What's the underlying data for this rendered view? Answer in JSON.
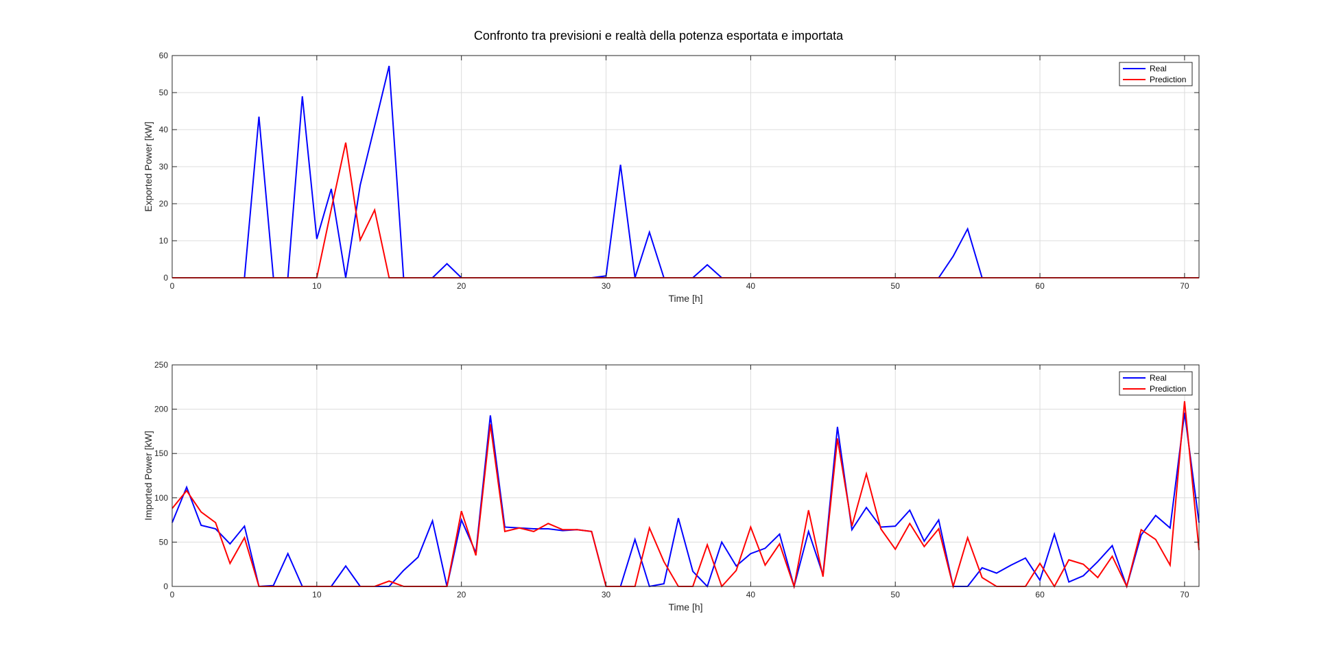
{
  "figure": {
    "title": "Confronto tra previsioni e realtà della potenza esportata e importata"
  },
  "colors": {
    "real": "#0000ff",
    "prediction": "#ff0000",
    "grid": "#dcdcdc",
    "axis": "#262626"
  },
  "chart_data": [
    {
      "type": "line",
      "title": "",
      "xlabel": "Time [h]",
      "ylabel": "Exported Power [kW]",
      "xlim": [
        0,
        71
      ],
      "ylim": [
        0,
        60
      ],
      "xticks": [
        0,
        10,
        20,
        30,
        40,
        50,
        60,
        70
      ],
      "yticks": [
        0,
        10,
        20,
        30,
        40,
        50,
        60
      ],
      "grid": true,
      "legend_position": "top-right",
      "x": [
        0,
        1,
        2,
        3,
        4,
        5,
        6,
        7,
        8,
        9,
        10,
        11,
        12,
        13,
        14,
        15,
        16,
        17,
        18,
        19,
        20,
        21,
        22,
        23,
        24,
        25,
        26,
        27,
        28,
        29,
        30,
        31,
        32,
        33,
        34,
        35,
        36,
        37,
        38,
        39,
        40,
        41,
        42,
        43,
        44,
        45,
        46,
        47,
        48,
        49,
        50,
        51,
        52,
        53,
        54,
        55,
        56,
        57,
        58,
        59,
        60,
        61,
        62,
        63,
        64,
        65,
        66,
        67,
        68,
        69,
        70,
        71
      ],
      "series": [
        {
          "name": "Real",
          "color": "#0000ff",
          "values": [
            0,
            0,
            0,
            0,
            0,
            0,
            43.5,
            0,
            0,
            49,
            10.5,
            24,
            0,
            25,
            41,
            57.2,
            0,
            0,
            0,
            3.8,
            0,
            0,
            0,
            0,
            0,
            0,
            0,
            0,
            0,
            0,
            0.5,
            30.5,
            0,
            12.3,
            0,
            0,
            0,
            3.5,
            0,
            0,
            0,
            0,
            0,
            0,
            0,
            0,
            0,
            0,
            0,
            0,
            0,
            0,
            0,
            0,
            5.8,
            13.2,
            0,
            0,
            0,
            0,
            0,
            0,
            0,
            0,
            0,
            0,
            0,
            0,
            0,
            0,
            0,
            0
          ]
        },
        {
          "name": "Prediction",
          "color": "#ff0000",
          "values": [
            0,
            0,
            0,
            0,
            0,
            0,
            0,
            0,
            0,
            0,
            0,
            18.5,
            36.5,
            10.2,
            18.3,
            0,
            0,
            0,
            0,
            0,
            0,
            0,
            0,
            0,
            0,
            0,
            0,
            0,
            0,
            0,
            0,
            0,
            0,
            0,
            0,
            0,
            0,
            0,
            0,
            0,
            0,
            0,
            0,
            0,
            0,
            0,
            0,
            0,
            0,
            0,
            0,
            0,
            0,
            0,
            0,
            0,
            0,
            0,
            0,
            0,
            0,
            0,
            0,
            0,
            0,
            0,
            0,
            0,
            0,
            0,
            0,
            0
          ]
        }
      ]
    },
    {
      "type": "line",
      "title": "",
      "xlabel": "Time [h]",
      "ylabel": "Imported Power [kW]",
      "xlim": [
        0,
        71
      ],
      "ylim": [
        0,
        250
      ],
      "xticks": [
        0,
        10,
        20,
        30,
        40,
        50,
        60,
        70
      ],
      "yticks": [
        0,
        50,
        100,
        150,
        200,
        250
      ],
      "grid": true,
      "legend_position": "top-right",
      "x": [
        0,
        1,
        2,
        3,
        4,
        5,
        6,
        7,
        8,
        9,
        10,
        11,
        12,
        13,
        14,
        15,
        16,
        17,
        18,
        19,
        20,
        21,
        22,
        23,
        24,
        25,
        26,
        27,
        28,
        29,
        30,
        31,
        32,
        33,
        34,
        35,
        36,
        37,
        38,
        39,
        40,
        41,
        42,
        43,
        44,
        45,
        46,
        47,
        48,
        49,
        50,
        51,
        52,
        53,
        54,
        55,
        56,
        57,
        58,
        59,
        60,
        61,
        62,
        63,
        64,
        65,
        66,
        67,
        68,
        69,
        70,
        71
      ],
      "series": [
        {
          "name": "Real",
          "color": "#0000ff",
          "values": [
            72,
            112,
            69,
            65,
            48,
            68,
            0,
            1,
            37,
            0,
            0,
            0,
            23,
            0,
            0,
            0,
            18,
            33,
            74,
            0,
            75,
            38,
            193,
            67,
            66,
            65,
            65,
            63,
            64,
            62,
            0,
            0,
            53,
            0,
            3,
            77,
            17,
            0,
            50,
            23,
            37,
            43,
            59,
            0,
            62,
            13,
            180,
            64,
            89,
            67,
            68,
            86,
            51,
            75,
            0,
            0,
            21,
            15,
            24,
            32,
            7,
            59,
            5,
            12,
            28,
            46,
            0,
            58,
            80,
            66,
            196,
            72
          ]
        },
        {
          "name": "Prediction",
          "color": "#ff0000",
          "values": [
            88,
            108,
            84,
            72,
            26,
            55,
            0,
            0,
            0,
            0,
            0,
            0,
            0,
            0,
            0,
            6,
            0,
            0,
            0,
            0,
            85,
            35,
            183,
            62,
            66,
            62,
            71,
            64,
            64,
            62,
            0,
            0,
            0,
            66,
            28,
            0,
            0,
            47,
            0,
            18,
            67,
            24,
            48,
            0,
            86,
            11,
            167,
            68,
            127,
            65,
            42,
            71,
            45,
            65,
            0,
            55,
            10,
            0,
            0,
            0,
            26,
            0,
            30,
            25,
            10,
            34,
            0,
            64,
            53,
            24,
            209,
            41
          ]
        }
      ]
    }
  ]
}
